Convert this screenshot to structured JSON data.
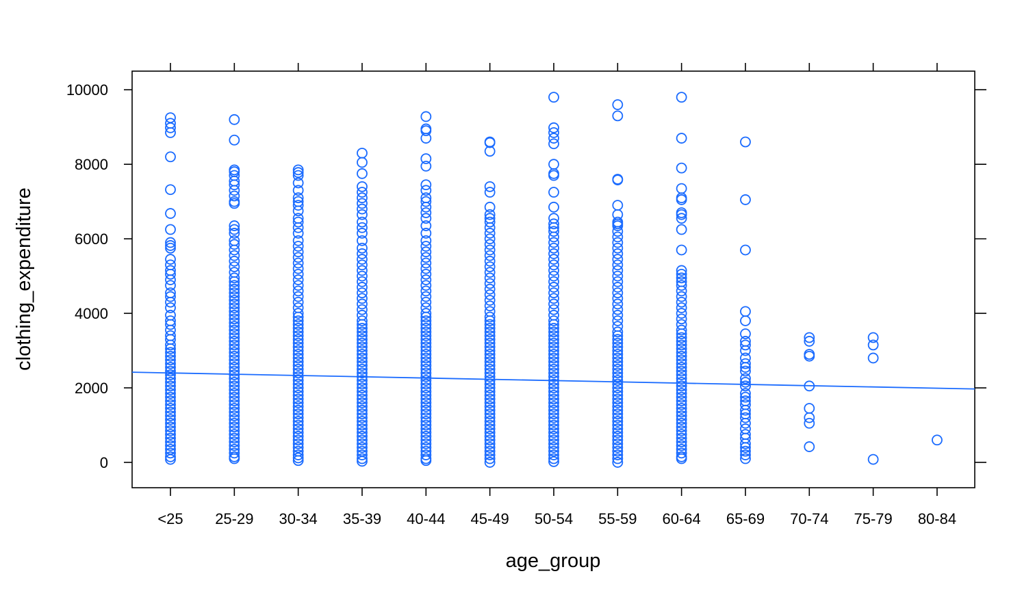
{
  "chart_data": {
    "type": "scatter",
    "title": "",
    "xlabel": "age_group",
    "ylabel": "clothing_expenditure",
    "categories": [
      "<25",
      "25-29",
      "30-34",
      "35-39",
      "40-44",
      "45-49",
      "50-54",
      "55-59",
      "60-64",
      "65-69",
      "70-74",
      "75-79",
      "80-84"
    ],
    "ylim": [
      -680,
      10500
    ],
    "yticks": [
      0,
      2000,
      4000,
      6000,
      8000,
      10000
    ],
    "grid": false,
    "legend": "none",
    "point_color": "#1a6bff",
    "line_color": "#1a6bff",
    "fit_line": {
      "x0": 0,
      "y0": 2400,
      "x1": 12,
      "y1": 1990
    },
    "points": [
      {
        "category": "<25",
        "y": [
          9250,
          9100,
          8980,
          8850,
          8200,
          7320,
          6680,
          6250,
          5900,
          5820,
          5750,
          5450,
          5300,
          5150,
          5050,
          4900,
          4750,
          4550,
          4450,
          4300,
          4150,
          3950,
          3800,
          3700,
          3550,
          3400,
          3300,
          3150,
          3050,
          2950,
          2850,
          2750,
          2650,
          2550,
          2450,
          2350,
          2250,
          2150,
          2050,
          1950,
          1850,
          1750,
          1650,
          1550,
          1450,
          1350,
          1250,
          1150,
          1050,
          950,
          850,
          750,
          650,
          550,
          450,
          350,
          250,
          150,
          80
        ]
      },
      {
        "category": "25-29",
        "y": [
          9200,
          8650,
          7850,
          7800,
          7700,
          7550,
          7450,
          7300,
          7150,
          7000,
          6950,
          6350,
          6250,
          6150,
          5950,
          5850,
          5700,
          5550,
          5400,
          5250,
          5100,
          4950,
          4850,
          4750,
          4650,
          4550,
          4450,
          4350,
          4250,
          4150,
          4050,
          3950,
          3850,
          3750,
          3650,
          3550,
          3450,
          3350,
          3250,
          3150,
          3050,
          2950,
          2850,
          2750,
          2650,
          2550,
          2450,
          2350,
          2250,
          2150,
          2050,
          1950,
          1850,
          1750,
          1650,
          1550,
          1450,
          1350,
          1250,
          1150,
          1050,
          950,
          850,
          750,
          650,
          550,
          450,
          350,
          250,
          150,
          100
        ]
      },
      {
        "category": "30-34",
        "y": [
          7850,
          7780,
          7700,
          7500,
          7300,
          7100,
          7000,
          6900,
          6750,
          6550,
          6450,
          6300,
          6150,
          5950,
          5800,
          5650,
          5500,
          5350,
          5200,
          5050,
          4900,
          4750,
          4600,
          4450,
          4300,
          4150,
          4000,
          3900,
          3800,
          3700,
          3600,
          3500,
          3400,
          3300,
          3200,
          3100,
          3000,
          2900,
          2800,
          2700,
          2600,
          2500,
          2400,
          2300,
          2200,
          2100,
          2000,
          1900,
          1800,
          1700,
          1600,
          1500,
          1400,
          1300,
          1200,
          1100,
          1000,
          900,
          800,
          700,
          600,
          500,
          400,
          300,
          200,
          120,
          50
        ]
      },
      {
        "category": "35-39",
        "y": [
          8300,
          8050,
          7750,
          7400,
          7250,
          7100,
          6950,
          6800,
          6650,
          6450,
          6300,
          6150,
          5950,
          5750,
          5600,
          5450,
          5300,
          5150,
          5000,
          4850,
          4700,
          4550,
          4400,
          4250,
          4100,
          3950,
          3800,
          3700,
          3600,
          3500,
          3400,
          3300,
          3200,
          3100,
          3000,
          2900,
          2800,
          2700,
          2600,
          2500,
          2400,
          2300,
          2200,
          2100,
          2000,
          1900,
          1800,
          1700,
          1600,
          1500,
          1400,
          1300,
          1200,
          1100,
          1000,
          900,
          800,
          700,
          600,
          500,
          400,
          300,
          200,
          100,
          30
        ]
      },
      {
        "category": "40-44",
        "y": [
          9280,
          8950,
          8900,
          8700,
          8150,
          7950,
          7450,
          7300,
          7100,
          7000,
          6850,
          6700,
          6550,
          6350,
          6150,
          5950,
          5800,
          5650,
          5500,
          5350,
          5200,
          5050,
          4900,
          4750,
          4600,
          4450,
          4300,
          4150,
          4000,
          3900,
          3800,
          3700,
          3600,
          3500,
          3400,
          3300,
          3200,
          3100,
          3000,
          2900,
          2800,
          2700,
          2600,
          2500,
          2400,
          2300,
          2200,
          2100,
          2000,
          1900,
          1800,
          1700,
          1600,
          1500,
          1400,
          1300,
          1200,
          1100,
          1000,
          900,
          800,
          700,
          600,
          500,
          400,
          300,
          200,
          100,
          50
        ]
      },
      {
        "category": "45-49",
        "y": [
          8600,
          8580,
          8350,
          7400,
          7250,
          6850,
          6650,
          6550,
          6450,
          6300,
          6150,
          6000,
          5850,
          5700,
          5550,
          5400,
          5250,
          5100,
          4950,
          4800,
          4650,
          4500,
          4350,
          4200,
          4050,
          3900,
          3800,
          3700,
          3600,
          3500,
          3400,
          3300,
          3200,
          3100,
          3000,
          2900,
          2800,
          2700,
          2600,
          2500,
          2400,
          2300,
          2200,
          2100,
          2000,
          1900,
          1800,
          1700,
          1600,
          1500,
          1400,
          1300,
          1200,
          1100,
          1000,
          900,
          800,
          700,
          600,
          500,
          400,
          300,
          200,
          100,
          0
        ]
      },
      {
        "category": "50-54",
        "y": [
          9800,
          8980,
          8850,
          8700,
          8550,
          8000,
          7750,
          7700,
          7250,
          6850,
          6550,
          6400,
          6300,
          6200,
          6050,
          5900,
          5750,
          5600,
          5450,
          5300,
          5150,
          5000,
          4850,
          4700,
          4550,
          4400,
          4250,
          4100,
          3950,
          3800,
          3700,
          3600,
          3500,
          3400,
          3300,
          3200,
          3100,
          3000,
          2900,
          2800,
          2700,
          2600,
          2500,
          2400,
          2300,
          2200,
          2100,
          2000,
          1900,
          1800,
          1700,
          1600,
          1500,
          1400,
          1300,
          1200,
          1100,
          1000,
          900,
          800,
          700,
          600,
          500,
          400,
          300,
          200,
          100,
          20
        ]
      },
      {
        "category": "55-59",
        "y": [
          9600,
          9300,
          7600,
          7580,
          6900,
          6650,
          6450,
          6400,
          6350,
          6200,
          6050,
          5900,
          5750,
          5600,
          5450,
          5300,
          5150,
          5000,
          4850,
          4700,
          4550,
          4400,
          4250,
          4100,
          3950,
          3800,
          3650,
          3500,
          3400,
          3300,
          3200,
          3100,
          3000,
          2900,
          2800,
          2700,
          2600,
          2500,
          2400,
          2300,
          2200,
          2100,
          2000,
          1900,
          1800,
          1700,
          1600,
          1500,
          1400,
          1300,
          1200,
          1100,
          1000,
          900,
          800,
          700,
          600,
          500,
          400,
          300,
          200,
          100,
          0
        ]
      },
      {
        "category": "60-64",
        "y": [
          9800,
          8700,
          7900,
          7350,
          7100,
          7050,
          6700,
          6650,
          6550,
          6250,
          5700,
          5150,
          5050,
          4950,
          4850,
          4750,
          4600,
          4450,
          4300,
          4150,
          4000,
          3850,
          3700,
          3550,
          3450,
          3350,
          3250,
          3150,
          3050,
          2950,
          2850,
          2750,
          2650,
          2550,
          2450,
          2350,
          2250,
          2150,
          2050,
          1950,
          1850,
          1750,
          1650,
          1550,
          1450,
          1350,
          1250,
          1150,
          1050,
          950,
          850,
          750,
          650,
          550,
          450,
          350,
          250,
          150,
          100
        ]
      },
      {
        "category": "65-69",
        "y": [
          8600,
          7050,
          5700,
          4050,
          3800,
          3450,
          3250,
          3150,
          3000,
          2800,
          2650,
          2550,
          2450,
          2250,
          2150,
          2050,
          1850,
          1750,
          1650,
          1550,
          1400,
          1300,
          1200,
          1050,
          900,
          750,
          650,
          500,
          400,
          300,
          200,
          100
        ]
      },
      {
        "category": "70-74",
        "y": [
          3350,
          3250,
          2900,
          2850,
          2050,
          1450,
          1200,
          1050,
          420
        ]
      },
      {
        "category": "75-79",
        "y": [
          3350,
          3150,
          2800,
          80
        ]
      },
      {
        "category": "80-84",
        "y": [
          600
        ]
      }
    ]
  }
}
